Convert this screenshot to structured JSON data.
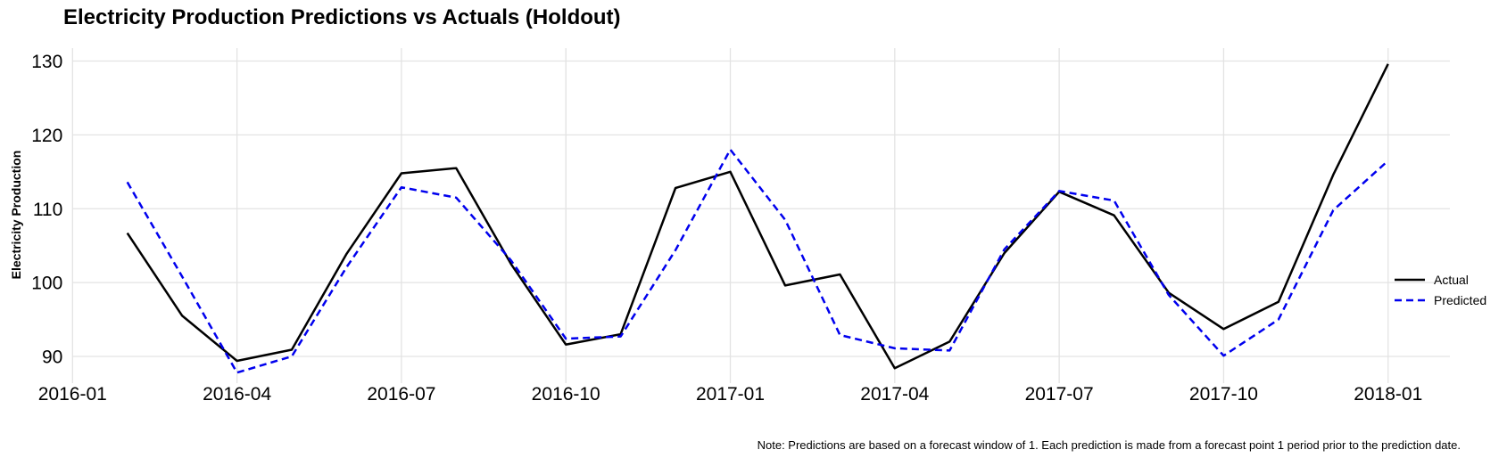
{
  "chart_data": {
    "type": "line",
    "title": "Electricity Production Predictions vs Actuals (Holdout)",
    "xlabel": "",
    "ylabel": "Electricity Production",
    "x": [
      "2016-02",
      "2016-03",
      "2016-04",
      "2016-05",
      "2016-06",
      "2016-07",
      "2016-08",
      "2016-09",
      "2016-10",
      "2016-11",
      "2016-12",
      "2017-01",
      "2017-02",
      "2017-03",
      "2017-04",
      "2017-05",
      "2017-06",
      "2017-07",
      "2017-08",
      "2017-09",
      "2017-10",
      "2017-11",
      "2017-12",
      "2018-01"
    ],
    "series": [
      {
        "name": "Actual",
        "color": "#000000",
        "style": "solid",
        "values": [
          106.7,
          95.5,
          89.4,
          90.9,
          103.9,
          114.8,
          115.5,
          102.5,
          91.6,
          93.0,
          112.8,
          115.0,
          99.6,
          101.1,
          88.4,
          92.0,
          104.0,
          112.3,
          109.1,
          98.6,
          93.7,
          97.4,
          114.6,
          129.6
        ]
      },
      {
        "name": "Predicted",
        "color": "#0000ee",
        "style": "dashed",
        "values": [
          113.6,
          100.8,
          87.8,
          90.0,
          102.1,
          112.9,
          111.5,
          103.0,
          92.4,
          92.7,
          104.4,
          118.0,
          108.5,
          92.9,
          91.1,
          90.8,
          104.5,
          112.4,
          111.1,
          98.3,
          90.1,
          95.0,
          109.8,
          116.5
        ]
      }
    ],
    "xticks": [
      "2016-01",
      "2016-04",
      "2016-07",
      "2016-10",
      "2017-01",
      "2017-04",
      "2017-07",
      "2017-10",
      "2018-01"
    ],
    "yticks": [
      90,
      100,
      110,
      120,
      130
    ],
    "ylim": [
      86.4,
      131.8
    ],
    "xlim": [
      "2016-01",
      "2018-02"
    ],
    "grid": true,
    "legend_position": "center right"
  },
  "note": "Note: Predictions are based on a forecast window of 1. Each prediction is made from a forecast point 1 period prior to the prediction date.",
  "colors": {
    "background": "#ffffff",
    "grid": "#e3e3e3",
    "text": "#000000",
    "actual": "#000000",
    "predicted": "#0000ee"
  }
}
